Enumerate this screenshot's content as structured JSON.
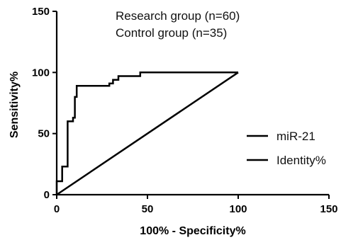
{
  "chart_data": {
    "type": "line",
    "title": "",
    "xlabel": "100% - Specificity%",
    "ylabel": "Sensitivity%",
    "xlim": [
      0,
      150
    ],
    "ylim": [
      0,
      150
    ],
    "x_ticks": [
      "0",
      "50",
      "100",
      "150"
    ],
    "y_ticks": [
      "0",
      "50",
      "100",
      "150"
    ],
    "annotations": [
      "Research group  (n=60)",
      "Control group  (n=35)"
    ],
    "legend_position": "right",
    "grid": false,
    "series": [
      {
        "name": "miR-21",
        "color": "#000000",
        "step": true,
        "x": [
          0,
          0,
          3,
          3,
          6,
          6,
          9,
          9,
          10,
          10,
          11,
          11,
          29,
          29,
          31,
          31,
          34,
          34,
          46,
          46,
          100
        ],
        "y": [
          0,
          11,
          11,
          23,
          23,
          60,
          60,
          63,
          63,
          80,
          80,
          89,
          89,
          91,
          91,
          94,
          94,
          97,
          97,
          100,
          100
        ]
      },
      {
        "name": "Identity%",
        "color": "#000000",
        "step": false,
        "x": [
          0,
          100
        ],
        "y": [
          0,
          100
        ]
      }
    ]
  }
}
